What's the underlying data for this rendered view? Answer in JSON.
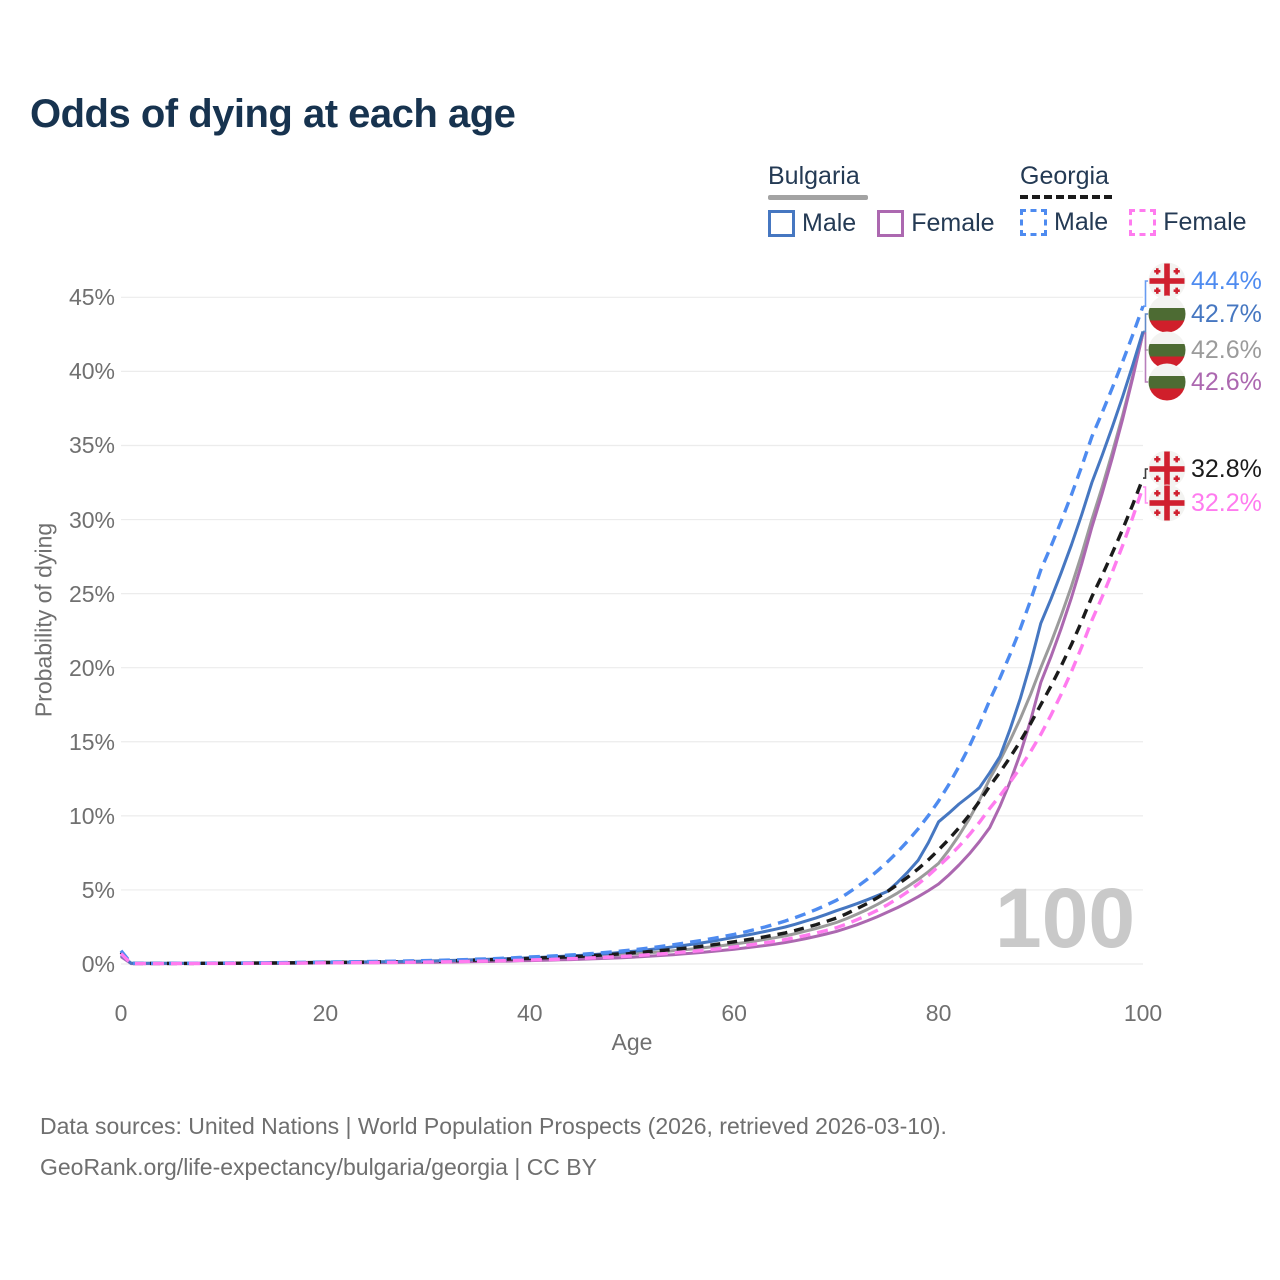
{
  "title": "Odds of dying at each age",
  "watermark": "100",
  "footer": {
    "line1": "Data sources: United Nations | World Population Prospects (2026, retrieved 2026-03-10).",
    "line2": "GeoRank.org/life-expectancy/bulgaria/georgia | CC BY"
  },
  "legend": {
    "groups": [
      {
        "country": "Bulgaria",
        "line_style": "solid",
        "swatch_color": "#a3a3a3",
        "items": [
          {
            "label": "Male",
            "color": "#4677c1",
            "dashed": false
          },
          {
            "label": "Female",
            "color": "#ac68b0",
            "dashed": false
          }
        ]
      },
      {
        "country": "Georgia",
        "line_style": "dashed",
        "swatch_color": "#1b1b1b",
        "items": [
          {
            "label": "Male",
            "color": "#4e8bf0",
            "dashed": true
          },
          {
            "label": "Female",
            "color": "#ff7bef",
            "dashed": true
          }
        ]
      }
    ]
  },
  "chart_data": {
    "type": "line",
    "title": "Odds of dying at each age",
    "xlabel": "Age",
    "ylabel": "Probability of dying",
    "xlim": [
      0,
      100
    ],
    "ylim_pct": [
      0,
      45
    ],
    "x_ticks": [
      0,
      20,
      40,
      60,
      80,
      100
    ],
    "y_ticks_pct": [
      0,
      5,
      10,
      15,
      20,
      25,
      30,
      35,
      40,
      45
    ],
    "grid": "horizontal-only",
    "grid_color": "#ececec",
    "legend_position": "top-right",
    "series": [
      {
        "name": "Bulgaria Total",
        "country": "Bulgaria",
        "sex": "Total",
        "color": "#9b9b9b",
        "dash": null,
        "flag": "bg",
        "end_label": "42.6%",
        "end_value_pct": 42.6,
        "label_row_y": 350,
        "points_age_pct": [
          [
            0,
            0.55
          ],
          [
            1,
            0.04
          ],
          [
            5,
            0.04
          ],
          [
            10,
            0.05
          ],
          [
            15,
            0.07
          ],
          [
            20,
            0.1
          ],
          [
            25,
            0.13
          ],
          [
            30,
            0.17
          ],
          [
            35,
            0.25
          ],
          [
            40,
            0.35
          ],
          [
            45,
            0.48
          ],
          [
            50,
            0.68
          ],
          [
            55,
            0.95
          ],
          [
            60,
            1.35
          ],
          [
            65,
            1.9
          ],
          [
            70,
            2.8
          ],
          [
            75,
            4.4
          ],
          [
            80,
            6.8
          ],
          [
            85,
            12.5
          ],
          [
            90,
            20.0
          ],
          [
            95,
            30.0
          ],
          [
            100,
            42.6
          ]
        ]
      },
      {
        "name": "Bulgaria Female",
        "country": "Bulgaria",
        "sex": "Female",
        "color": "#ac68b0",
        "dash": null,
        "flag": "bg",
        "end_label": "42.6%",
        "end_value_pct": 42.6,
        "label_row_y": 382,
        "points_age_pct": [
          [
            0,
            0.5
          ],
          [
            1,
            0.03
          ],
          [
            5,
            0.03
          ],
          [
            10,
            0.04
          ],
          [
            15,
            0.05
          ],
          [
            20,
            0.07
          ],
          [
            25,
            0.09
          ],
          [
            30,
            0.11
          ],
          [
            35,
            0.16
          ],
          [
            40,
            0.23
          ],
          [
            45,
            0.32
          ],
          [
            50,
            0.46
          ],
          [
            55,
            0.68
          ],
          [
            60,
            1.0
          ],
          [
            65,
            1.45
          ],
          [
            70,
            2.2
          ],
          [
            75,
            3.5
          ],
          [
            80,
            5.4
          ],
          [
            85,
            9.2
          ],
          [
            90,
            19.0
          ],
          [
            95,
            29.5
          ],
          [
            100,
            42.6
          ]
        ]
      },
      {
        "name": "Bulgaria Male",
        "country": "Bulgaria",
        "sex": "Male",
        "color": "#4677c1",
        "dash": null,
        "flag": "bg",
        "end_label": "42.7%",
        "end_value_pct": 42.7,
        "label_row_y": 314,
        "points_age_pct": [
          [
            0,
            0.6
          ],
          [
            1,
            0.05
          ],
          [
            5,
            0.05
          ],
          [
            10,
            0.06
          ],
          [
            15,
            0.08
          ],
          [
            20,
            0.12
          ],
          [
            25,
            0.15
          ],
          [
            30,
            0.2
          ],
          [
            35,
            0.3
          ],
          [
            40,
            0.42
          ],
          [
            45,
            0.58
          ],
          [
            50,
            0.85
          ],
          [
            55,
            1.25
          ],
          [
            60,
            1.8
          ],
          [
            65,
            2.5
          ],
          [
            70,
            3.6
          ],
          [
            75,
            4.9
          ],
          [
            78,
            7.0
          ],
          [
            80,
            9.6
          ],
          [
            82,
            10.8
          ],
          [
            84,
            11.9
          ],
          [
            86,
            14.0
          ],
          [
            90,
            23.0
          ],
          [
            95,
            32.5
          ],
          [
            100,
            42.7
          ]
        ]
      },
      {
        "name": "Georgia Total",
        "country": "Georgia",
        "sex": "Total",
        "color": "#1b1b1b",
        "dash": "10 7",
        "flag": "ge",
        "end_label": "32.8%",
        "end_value_pct": 32.8,
        "label_row_y": 469,
        "points_age_pct": [
          [
            0,
            0.8
          ],
          [
            1,
            0.04
          ],
          [
            5,
            0.04
          ],
          [
            10,
            0.05
          ],
          [
            15,
            0.07
          ],
          [
            20,
            0.1
          ],
          [
            25,
            0.14
          ],
          [
            30,
            0.18
          ],
          [
            35,
            0.27
          ],
          [
            40,
            0.38
          ],
          [
            45,
            0.52
          ],
          [
            50,
            0.75
          ],
          [
            55,
            1.05
          ],
          [
            60,
            1.5
          ],
          [
            65,
            2.1
          ],
          [
            70,
            3.1
          ],
          [
            75,
            4.9
          ],
          [
            80,
            7.7
          ],
          [
            85,
            12.0
          ],
          [
            90,
            17.5
          ],
          [
            95,
            24.8
          ],
          [
            100,
            32.8
          ]
        ]
      },
      {
        "name": "Georgia Male",
        "country": "Georgia",
        "sex": "Male",
        "color": "#4e8bf0",
        "dash": "11 7",
        "flag": "ge",
        "end_label": "44.4%",
        "end_value_pct": 44.4,
        "label_row_y": 281,
        "points_age_pct": [
          [
            0,
            0.9
          ],
          [
            1,
            0.05
          ],
          [
            5,
            0.05
          ],
          [
            10,
            0.06
          ],
          [
            15,
            0.09
          ],
          [
            20,
            0.13
          ],
          [
            25,
            0.17
          ],
          [
            30,
            0.23
          ],
          [
            35,
            0.33
          ],
          [
            40,
            0.47
          ],
          [
            45,
            0.65
          ],
          [
            50,
            0.95
          ],
          [
            55,
            1.4
          ],
          [
            60,
            2.0
          ],
          [
            65,
            2.9
          ],
          [
            70,
            4.3
          ],
          [
            75,
            6.9
          ],
          [
            80,
            11.0
          ],
          [
            85,
            17.8
          ],
          [
            90,
            26.6
          ],
          [
            95,
            35.6
          ],
          [
            100,
            44.4
          ]
        ]
      },
      {
        "name": "Georgia Female",
        "country": "Georgia",
        "sex": "Female",
        "color": "#ff7bef",
        "dash": "11 7",
        "flag": "ge",
        "end_label": "32.2%",
        "end_value_pct": 32.2,
        "label_row_y": 503,
        "points_age_pct": [
          [
            0,
            0.7
          ],
          [
            1,
            0.03
          ],
          [
            5,
            0.03
          ],
          [
            10,
            0.04
          ],
          [
            15,
            0.05
          ],
          [
            20,
            0.08
          ],
          [
            25,
            0.1
          ],
          [
            30,
            0.13
          ],
          [
            35,
            0.19
          ],
          [
            40,
            0.27
          ],
          [
            45,
            0.38
          ],
          [
            50,
            0.55
          ],
          [
            55,
            0.8
          ],
          [
            60,
            1.15
          ],
          [
            65,
            1.65
          ],
          [
            70,
            2.45
          ],
          [
            75,
            4.0
          ],
          [
            80,
            6.6
          ],
          [
            85,
            10.5
          ],
          [
            90,
            15.5
          ],
          [
            95,
            23.2
          ],
          [
            100,
            32.2
          ]
        ]
      }
    ]
  }
}
